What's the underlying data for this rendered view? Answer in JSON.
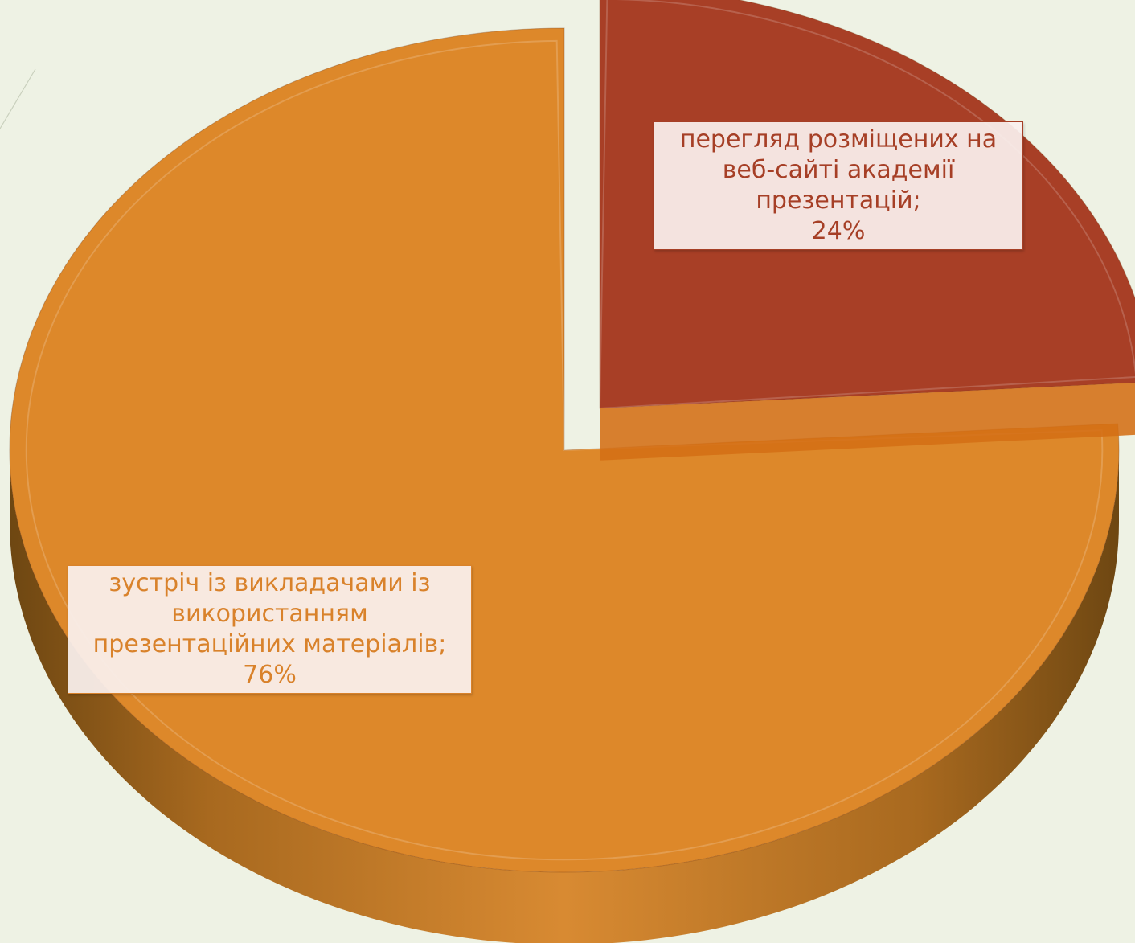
{
  "chart_data": {
    "type": "pie",
    "style": "3d-exploded",
    "title": "",
    "slices": [
      {
        "label_lines": [
          "перегляд розміщених на",
          "веб-сайті академії",
          "презентацій;"
        ],
        "value_label": "24%",
        "value": 24,
        "color": "#a83f26",
        "exploded": true
      },
      {
        "label_lines": [
          "зустріч із викладачами із",
          "використанням",
          "презентаційних матеріалів;"
        ],
        "value_label": "76%",
        "value": 76,
        "color": "#dd882a",
        "exploded": false
      }
    ]
  },
  "colors": {
    "background": "#eef2e4",
    "side_dark": "#6e4712",
    "side_light": "#c8822a"
  }
}
